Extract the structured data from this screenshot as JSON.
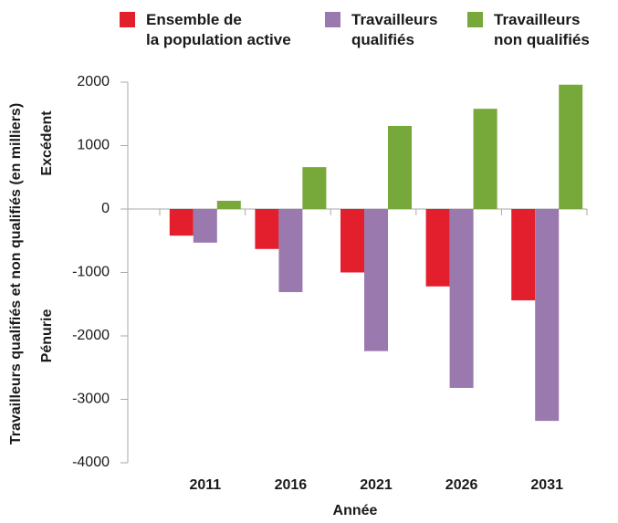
{
  "chart_data": {
    "type": "bar",
    "categories": [
      "2011",
      "2016",
      "2021",
      "2026",
      "2031"
    ],
    "series": [
      {
        "name": "Ensemble de\nla population active",
        "color": "#e31e2d",
        "values": [
          -420,
          -630,
          -1000,
          -1220,
          -1440
        ]
      },
      {
        "name": "Travailleurs\nqualifiés",
        "color": "#9a7aae",
        "values": [
          -530,
          -1310,
          -2240,
          -2820,
          -3340
        ]
      },
      {
        "name": "Travailleurs\nnon qualifiés",
        "color": "#76a83a",
        "values": [
          130,
          660,
          1310,
          1580,
          1960
        ]
      }
    ],
    "ylim": [
      -4000,
      2000
    ],
    "yticks": [
      -4000,
      -3000,
      -2000,
      -1000,
      0,
      1000,
      2000
    ],
    "ylabel": "Travailleurs qualifiés et non qualifiés (en milliers)",
    "xlabel": "Année",
    "annotations": [
      "Excédent",
      "Pénurie"
    ],
    "grid": false
  }
}
